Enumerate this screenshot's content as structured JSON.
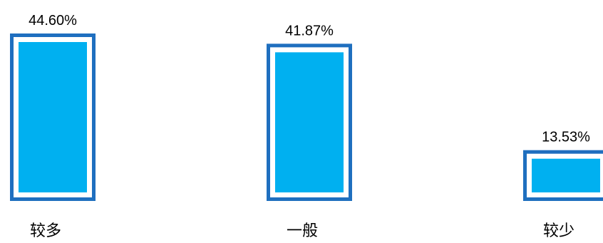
{
  "chart_data": {
    "type": "bar",
    "categories": [
      "较多",
      "一般",
      "较少"
    ],
    "values": [
      44.6,
      41.87,
      13.53
    ],
    "value_labels": [
      "44.60%",
      "41.87%",
      "13.53%"
    ],
    "title": "",
    "xlabel": "",
    "ylabel": "",
    "ylim": [
      0,
      44.6
    ],
    "grid": false,
    "legend": "none",
    "colors": {
      "bar_fill": "#00B0F0",
      "bar_outline": "#1F6FBF",
      "text": "#000000"
    }
  }
}
